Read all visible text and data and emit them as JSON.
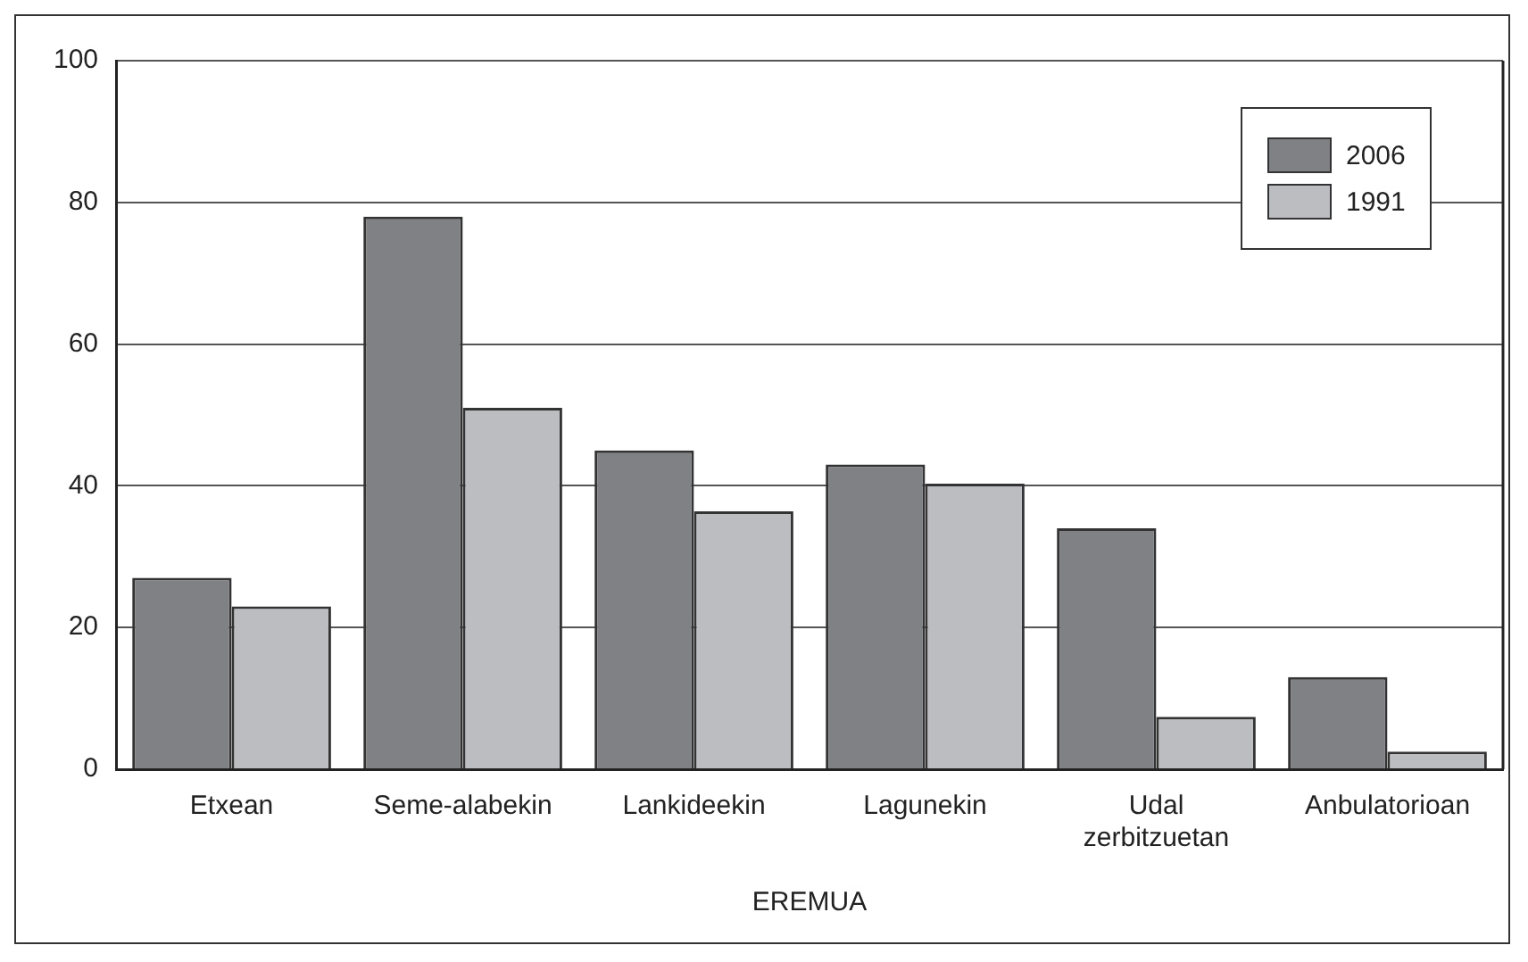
{
  "chart_data": {
    "type": "bar",
    "xlabel": "EREMUA",
    "categories": [
      "Etxean",
      "Seme-alabekin",
      "Lankideekin",
      "Lagunekin",
      "Udal zerbitzuetan",
      "Anbulatorioan"
    ],
    "series": [
      {
        "name": "2006",
        "color": "#808184",
        "values": [
          27,
          78,
          45,
          43,
          34,
          13
        ]
      },
      {
        "name": "1991",
        "color": "#bcbdc0",
        "values": [
          23,
          51,
          36.4,
          40.3,
          7.4,
          2.5
        ]
      }
    ],
    "ylim": [
      0,
      100
    ],
    "yticks": [
      0,
      20,
      40,
      60,
      80,
      100
    ],
    "grid": "y",
    "legend": "top right"
  }
}
